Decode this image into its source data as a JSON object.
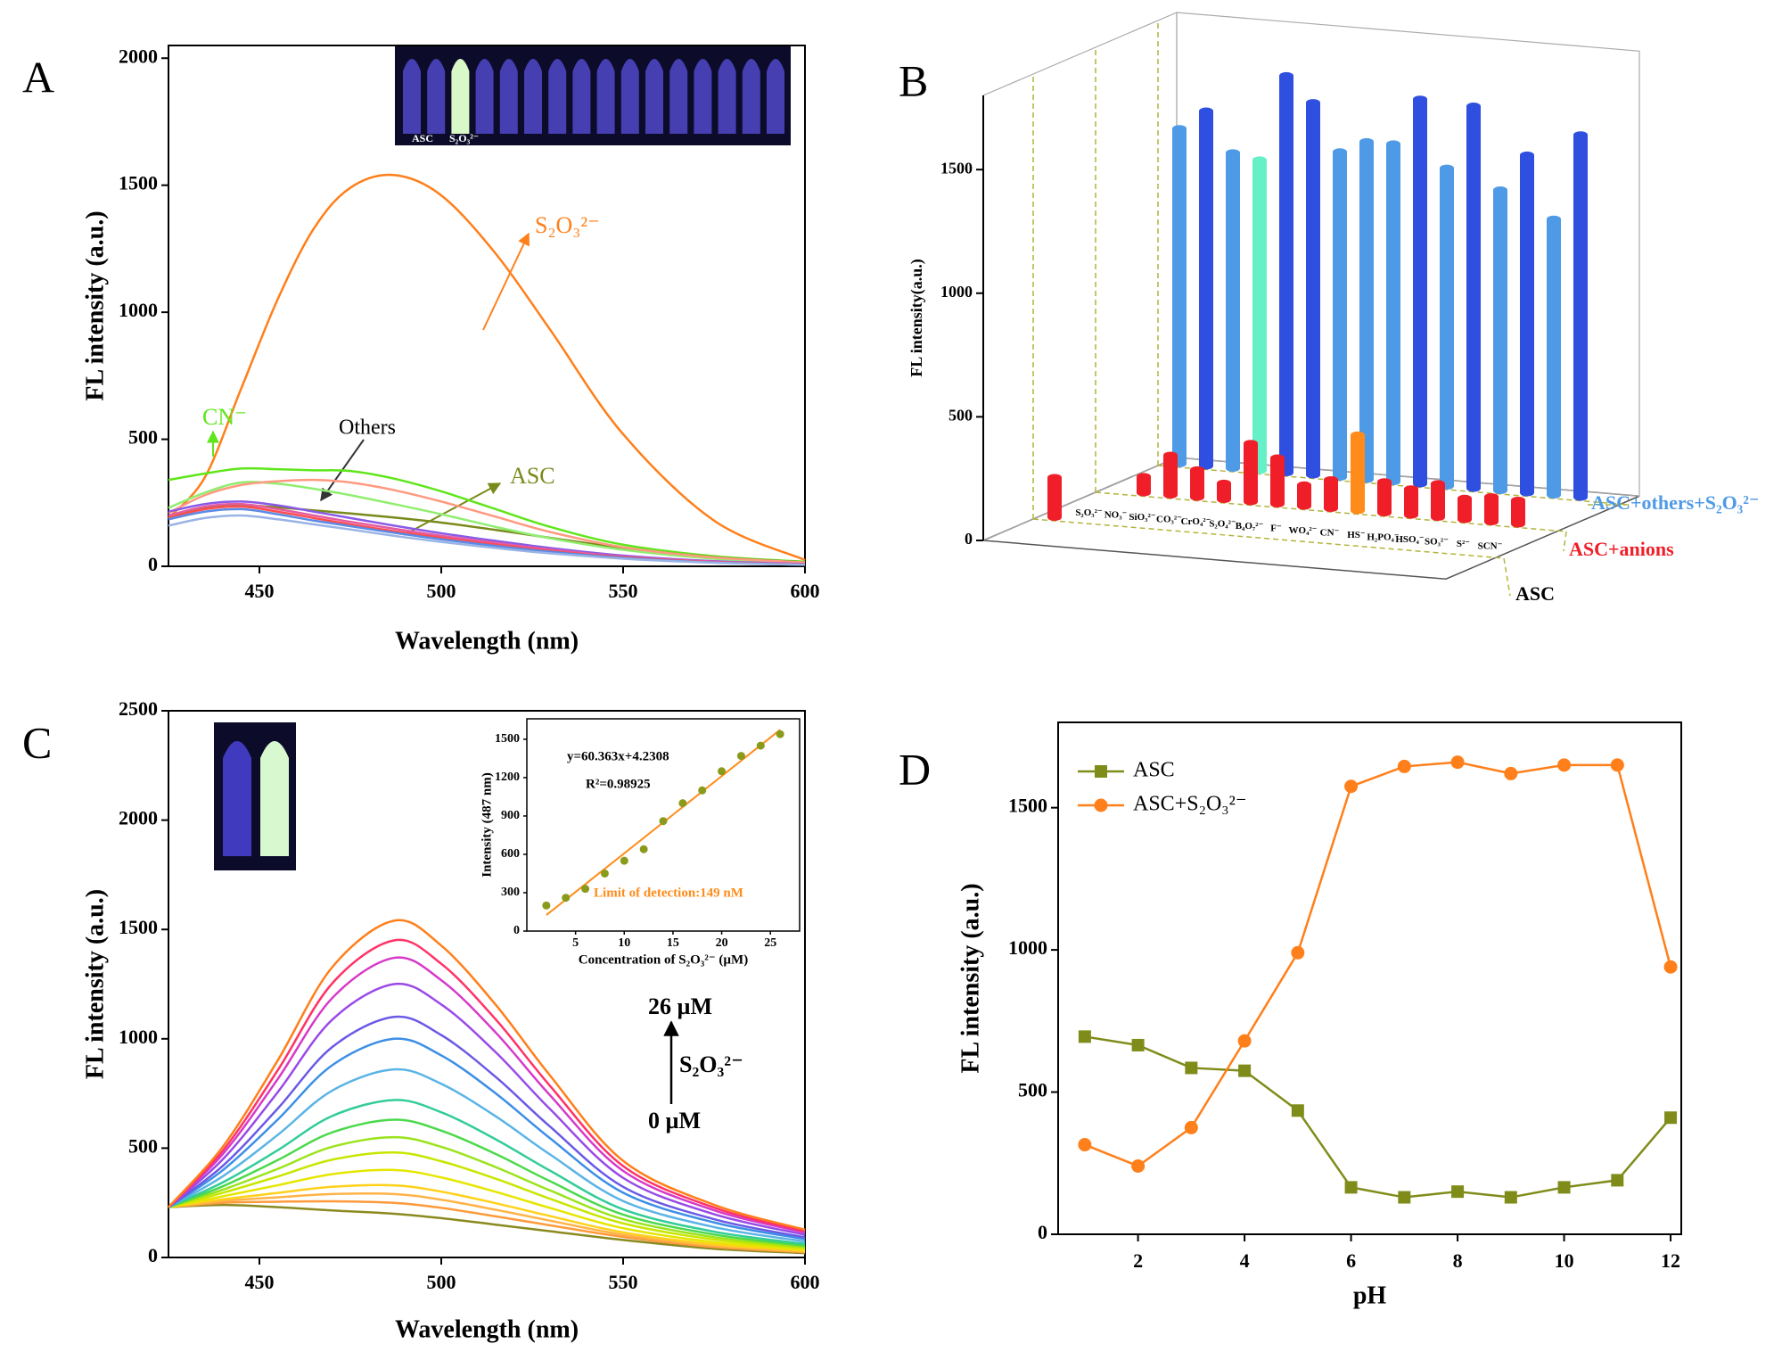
{
  "chart_data": [
    {
      "panel": "A",
      "type": "line",
      "smooth": true,
      "xlabel": "Wavelength (nm)",
      "ylabel": "FL intensity (a.u.)",
      "x": [
        425,
        435,
        445,
        455,
        465,
        475,
        487,
        500,
        515,
        530,
        550,
        575,
        600
      ],
      "xlim": [
        425,
        600
      ],
      "xticks": [
        450,
        500,
        550,
        600
      ],
      "ylim": [
        0,
        2050
      ],
      "yticks": [
        0,
        500,
        1000,
        1500,
        2000
      ],
      "series": [
        {
          "name": "S₂O₃²⁻",
          "color": "#ff7f1a",
          "values": [
            190,
            350,
            700,
            1050,
            1330,
            1490,
            1540,
            1460,
            1230,
            930,
            520,
            180,
            25
          ]
        },
        {
          "name": "CN⁻",
          "color": "#5fe61a",
          "values": [
            340,
            365,
            385,
            382,
            378,
            375,
            345,
            295,
            225,
            155,
            85,
            40,
            18
          ]
        },
        {
          "name": "ASC",
          "color": "#7a8a1a",
          "values": [
            200,
            230,
            240,
            232,
            220,
            208,
            192,
            172,
            143,
            112,
            72,
            36,
            16
          ]
        },
        {
          "color": "#90ee70",
          "values": [
            230,
            290,
            330,
            325,
            305,
            280,
            245,
            205,
            155,
            110,
            65,
            30,
            14
          ]
        },
        {
          "color": "#ff9980",
          "values": [
            210,
            280,
            320,
            335,
            340,
            330,
            300,
            255,
            195,
            135,
            75,
            35,
            15
          ]
        },
        {
          "color": "#8a5ae6",
          "values": [
            215,
            245,
            255,
            240,
            215,
            190,
            160,
            130,
            100,
            72,
            42,
            20,
            9
          ]
        },
        {
          "color": "#e65aa0",
          "values": [
            200,
            235,
            245,
            225,
            200,
            175,
            148,
            120,
            92,
            66,
            38,
            18,
            8
          ]
        },
        {
          "color": "#ff4d4d",
          "values": [
            190,
            225,
            235,
            215,
            190,
            165,
            138,
            112,
            85,
            60,
            35,
            16,
            7
          ]
        },
        {
          "color": "#5a8ae6",
          "values": [
            185,
            215,
            225,
            205,
            180,
            158,
            132,
            106,
            80,
            57,
            33,
            15,
            6
          ]
        },
        {
          "color": "#99b3e6",
          "values": [
            160,
            190,
            200,
            185,
            165,
            145,
            120,
            96,
            72,
            51,
            30,
            14,
            6
          ]
        }
      ],
      "annotations": [
        "Others"
      ],
      "inset_labels": [
        "ASC",
        "S₂O₃²⁻"
      ]
    },
    {
      "panel": "B",
      "type": "bar3d",
      "ylabel": "FL intensity(a.u.)",
      "categories": [
        "S₂O₃²⁻",
        "NO₃⁻",
        "SiO₃²⁻",
        "CO₃²⁻",
        "CrO₄²⁻",
        "S₂O₄²⁻",
        "B₄O₇²⁻",
        "F⁻",
        "WO₄²⁻",
        "CN⁻",
        "HS⁻",
        "H₂PO₄⁻",
        "HSO₄⁻",
        "SO₃²⁻",
        "S²⁻",
        "SCN⁻"
      ],
      "ylim": [
        0,
        1800
      ],
      "yticks": [
        0,
        500,
        1000,
        1500
      ],
      "series": [
        {
          "name": "ASC",
          "label_color": "#000000",
          "colors": [
            "#f01e28",
            null,
            null,
            null,
            null,
            null,
            null,
            null,
            null,
            null,
            null,
            null,
            null,
            null,
            null,
            null
          ],
          "values": [
            175,
            null,
            null,
            null,
            null,
            null,
            null,
            null,
            null,
            null,
            null,
            null,
            null,
            null,
            null,
            null
          ]
        },
        {
          "name": "ASC+anions",
          "label_color": "#f01e28",
          "colors": [
            null,
            "#f01e28",
            "#f01e28",
            "#f01e28",
            "#f01e28",
            "#f01e28",
            "#f01e28",
            "#f01e28",
            "#f01e28",
            "#ff8c1a",
            "#f01e28",
            "#f01e28",
            "#f01e28",
            "#f01e28",
            "#f01e28",
            "#f01e28"
          ],
          "values": [
            null,
            80,
            175,
            125,
            80,
            250,
            200,
            100,
            130,
            320,
            140,
            120,
            150,
            100,
            115,
            110
          ]
        },
        {
          "name": "ASC+others+S₂O₃²⁻",
          "label_color": "#4f9ae6",
          "colors": [
            "#4f9ae6",
            "#2f4fe0",
            "#4f9ae6",
            "#66f0c8",
            "#2f4fe0",
            "#2f4fe0",
            "#4f9ae6",
            "#4f9ae6",
            "#4f9ae6",
            "#2f4fe0",
            "#4f9ae6",
            "#2f4fe0",
            "#4f9ae6",
            "#2f4fe0",
            "#4f9ae6",
            "#2f4fe0"
          ],
          "values": [
            1370,
            1450,
            1290,
            1270,
            1620,
            1520,
            1330,
            1380,
            1380,
            1570,
            1300,
            1560,
            1230,
            1380,
            1130,
            1480
          ]
        }
      ]
    },
    {
      "panel": "C",
      "type": "line",
      "smooth": true,
      "xlabel": "Wavelength (nm)",
      "ylabel": "FL intensity (a.u.)",
      "x": [
        425,
        440,
        455,
        470,
        487,
        500,
        515,
        530,
        550,
        575,
        600
      ],
      "xlim": [
        425,
        600
      ],
      "xticks": [
        450,
        500,
        550,
        600
      ],
      "ylim": [
        0,
        2500
      ],
      "yticks": [
        0,
        500,
        1000,
        1500,
        2000,
        2500
      ],
      "series": [
        {
          "color": "#8a8a20",
          "values": [
            230,
            240,
            230,
            215,
            200,
            180,
            150,
            120,
            80,
            40,
            20
          ]
        },
        {
          "color": "#ff9a3c",
          "values": [
            230,
            250,
            255,
            257,
            250,
            227,
            188,
            147,
            94,
            48,
            24
          ]
        },
        {
          "color": "#ffb347",
          "values": [
            230,
            258,
            275,
            290,
            290,
            264,
            218,
            168,
            104,
            54,
            27
          ]
        },
        {
          "color": "#ffd11a",
          "values": [
            230,
            266,
            295,
            323,
            330,
            301,
            248,
            189,
            115,
            60,
            30
          ]
        },
        {
          "color": "#e6e600",
          "values": [
            230,
            280,
            330,
            381,
            400,
            366,
            300,
            226,
            134,
            70,
            36
          ]
        },
        {
          "color": "#c8e600",
          "values": [
            230,
            296,
            370,
            447,
            480,
            440,
            360,
            268,
            156,
            82,
            42
          ]
        },
        {
          "color": "#9be31c",
          "values": [
            230,
            310,
            405,
            506,
            550,
            506,
            413,
            306,
            175,
            93,
            48
          ]
        },
        {
          "color": "#4cd94c",
          "values": [
            230,
            326,
            445,
            572,
            630,
            580,
            473,
            348,
            196,
            105,
            54
          ]
        },
        {
          "color": "#33cc99",
          "values": [
            230,
            344,
            490,
            647,
            720,
            664,
            540,
            396,
            220,
            118,
            62
          ]
        },
        {
          "color": "#5ab4e6",
          "values": [
            230,
            372,
            560,
            763,
            860,
            794,
            645,
            470,
            258,
            139,
            73
          ]
        },
        {
          "color": "#3d8fe6",
          "values": [
            230,
            400,
            630,
            879,
            1000,
            924,
            750,
            544,
            296,
            160,
            84
          ]
        },
        {
          "color": "#6a5ae6",
          "values": [
            230,
            420,
            680,
            962,
            1100,
            1017,
            825,
            597,
            323,
            175,
            92
          ]
        },
        {
          "color": "#9a4ae6",
          "values": [
            230,
            450,
            755,
            1087,
            1250,
            1157,
            938,
            677,
            364,
            198,
            104
          ]
        },
        {
          "color": "#d63ac8",
          "values": [
            230,
            474,
            815,
            1186,
            1370,
            1268,
            1028,
            740,
            396,
            216,
            114
          ]
        },
        {
          "color": "#ff3366",
          "values": [
            230,
            490,
            855,
            1253,
            1450,
            1343,
            1088,
            783,
            418,
            228,
            120
          ]
        },
        {
          "color": "#ff7f1a",
          "values": [
            230,
            508,
            900,
            1327,
            1540,
            1426,
            1155,
            830,
            442,
            241,
            127
          ]
        }
      ],
      "annotations": [
        "26 µM",
        "S₂O₃²⁻",
        "0 µM"
      ],
      "inset": {
        "type": "scatter",
        "xlabel": "Concentration of S₂O₃²⁻ (µM)",
        "ylabel": "Intensity (487 nm)",
        "x": [
          2,
          4,
          6,
          8,
          10,
          12,
          14,
          16,
          18,
          20,
          22,
          24,
          26
        ],
        "values": [
          200,
          260,
          330,
          450,
          550,
          640,
          860,
          1000,
          1100,
          1250,
          1370,
          1450,
          1540
        ],
        "color": "#8a9a1a",
        "xlim": [
          0,
          28
        ],
        "xticks": [
          5,
          10,
          15,
          20,
          25
        ],
        "ylim": [
          0,
          1660
        ],
        "yticks": [
          0,
          300,
          600,
          900,
          1200,
          1500
        ],
        "fit": {
          "x": [
            2,
            26
          ],
          "values": [
            125,
            1574
          ],
          "color": "#ff8c1a"
        },
        "annotations": [
          "y=60.363x+4.2308",
          "R²=0.98925",
          "Limit of detection:149 nM"
        ]
      }
    },
    {
      "panel": "D",
      "type": "line",
      "xlabel": "pH",
      "ylabel": "FL intensity (a.u.)",
      "x": [
        1,
        2,
        3,
        4,
        5,
        6,
        7,
        8,
        9,
        10,
        11,
        12
      ],
      "xlim": [
        0.5,
        12.2
      ],
      "xticks": [
        2,
        4,
        6,
        8,
        10,
        12
      ],
      "ylim": [
        0,
        1800
      ],
      "yticks": [
        0,
        500,
        1000,
        1500
      ],
      "legend": "upper left",
      "series": [
        {
          "name": "ASC",
          "color": "#808c1a",
          "marker": "square",
          "values": [
            695,
            665,
            585,
            575,
            435,
            165,
            130,
            150,
            130,
            165,
            190,
            410
          ]
        },
        {
          "name": "ASC+S₂O₃²⁻",
          "color": "#ff7f1a",
          "marker": "circle",
          "values": [
            315,
            240,
            375,
            680,
            990,
            1575,
            1645,
            1660,
            1620,
            1650,
            1650,
            940
          ]
        }
      ]
    }
  ]
}
